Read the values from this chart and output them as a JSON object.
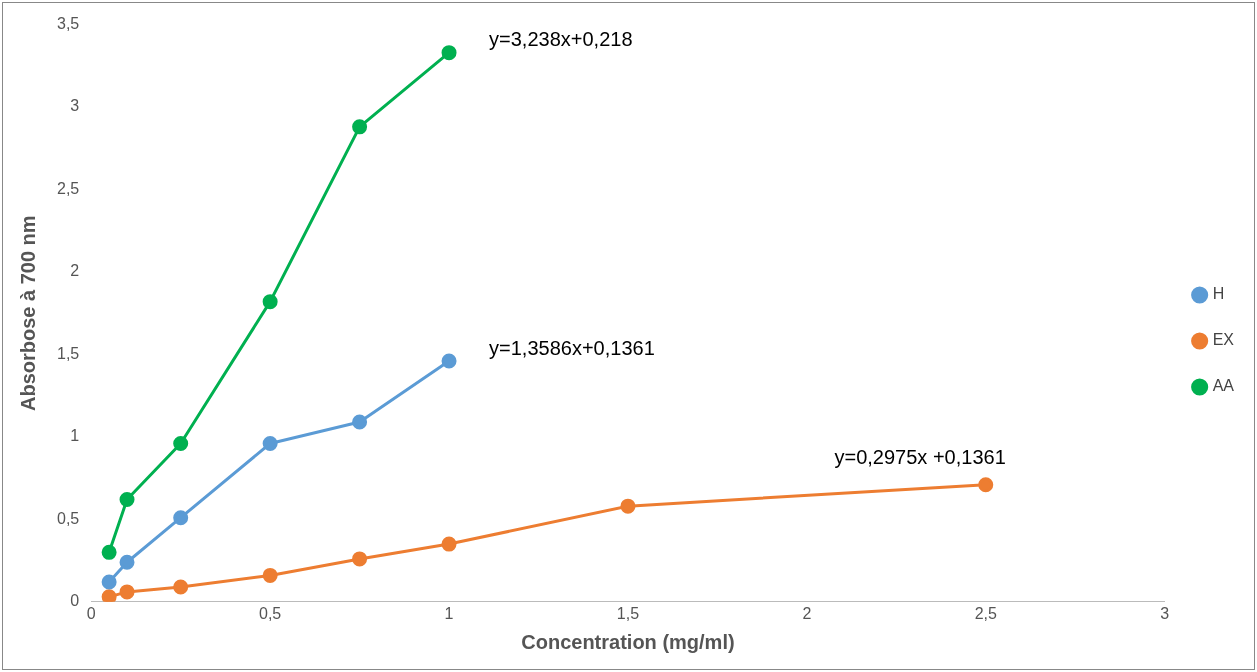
{
  "chart_data": {
    "type": "line",
    "xlabel": "Concentration (mg/ml)",
    "ylabel": "Absorbose à 700 nm",
    "series": [
      {
        "name": "H",
        "color": "#5b9bd5",
        "x": [
          0.05,
          0.1,
          0.25,
          0.5,
          0.75,
          1
        ],
        "values": [
          0.12,
          0.24,
          0.51,
          0.96,
          1.09,
          1.46
        ]
      },
      {
        "name": "EX",
        "color": "#ed7d31",
        "x": [
          0.05,
          0.1,
          0.25,
          0.5,
          0.75,
          1,
          1.5,
          2.5
        ],
        "values": [
          0.03,
          0.06,
          0.09,
          0.16,
          0.26,
          0.35,
          0.58,
          0.71
        ]
      },
      {
        "name": "AA",
        "color": "#00b050",
        "x": [
          0.05,
          0.1,
          0.25,
          0.5,
          0.75,
          1
        ],
        "values": [
          0.3,
          0.62,
          0.96,
          1.82,
          2.88,
          3.33
        ]
      }
    ],
    "xlim": [
      0,
      3
    ],
    "xticks": [
      0,
      {
        "value": 0.5,
        "label": "0,5"
      },
      1,
      {
        "value": 1.5,
        "label": "1,5"
      },
      2,
      {
        "value": 2.5,
        "label": "2,5"
      },
      3
    ],
    "ylim": [
      0,
      3.5
    ],
    "yticks": [
      0,
      {
        "value": 0.5,
        "label": "0,5"
      },
      1,
      {
        "value": 1.5,
        "label": "1,5"
      },
      2,
      {
        "value": 2.5,
        "label": "2,5"
      },
      3,
      {
        "value": 3.5,
        "label": "3,5"
      }
    ],
    "annotations": [
      "y=1,3586x+0,1361",
      "y=0,2975x +0,1361",
      "y=3,238x+0,218"
    ],
    "grid": false,
    "legend": "right",
    "marker": "circle",
    "line_style": "solid"
  }
}
